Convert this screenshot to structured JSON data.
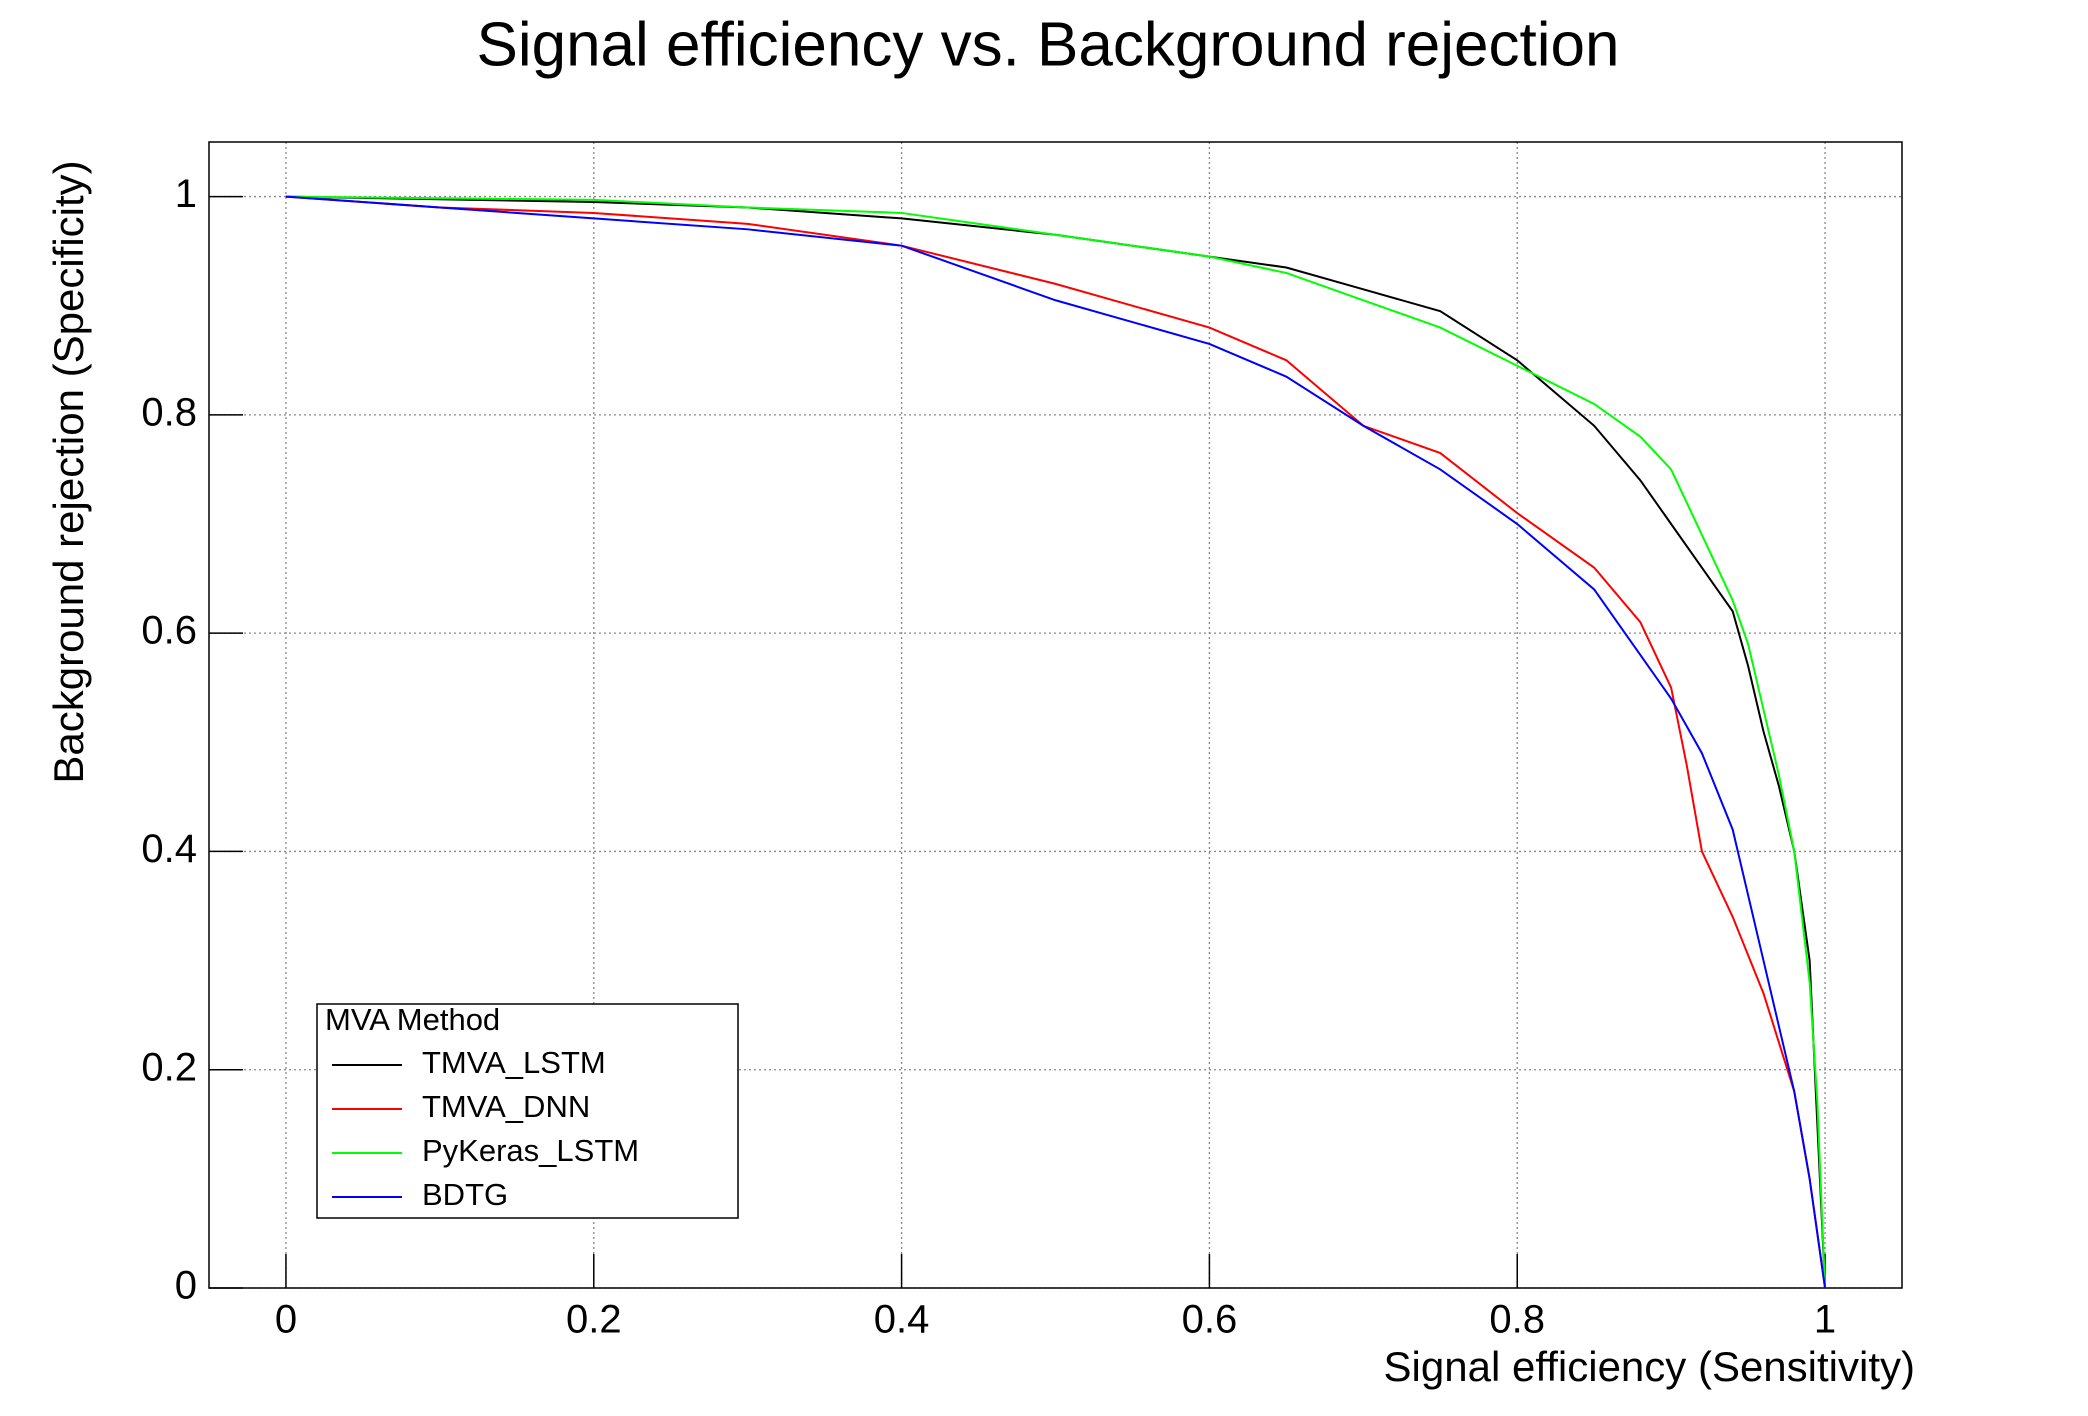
{
  "chart_data": {
    "type": "line",
    "title": "Signal efficiency vs. Background rejection",
    "x_label": "Signal efficiency (Sensitivity)",
    "y_label": "Background rejection (Specificity)",
    "xlim": [
      -0.05,
      1.05
    ],
    "ylim": [
      0,
      1.05
    ],
    "xticks": [
      0,
      0.2,
      0.4,
      0.6,
      0.8,
      1
    ],
    "yticks": [
      0,
      0.2,
      0.4,
      0.6,
      0.8,
      1
    ],
    "grid": true,
    "legend_title": "MVA Method",
    "legend_position": "bottom-left",
    "series": [
      {
        "name": "TMVA_LSTM",
        "color": "#000000",
        "x": [
          0,
          0.2,
          0.3,
          0.4,
          0.5,
          0.6,
          0.65,
          0.7,
          0.75,
          0.8,
          0.85,
          0.88,
          0.9,
          0.92,
          0.94,
          0.95,
          0.96,
          0.97,
          0.98,
          0.99,
          0.995,
          1
        ],
        "values": [
          1,
          0.995,
          0.99,
          0.98,
          0.965,
          0.945,
          0.935,
          0.915,
          0.895,
          0.85,
          0.79,
          0.74,
          0.7,
          0.66,
          0.62,
          0.57,
          0.51,
          0.46,
          0.4,
          0.3,
          0.15,
          0
        ]
      },
      {
        "name": "TMVA_DNN",
        "color": "#ff0000",
        "x": [
          0,
          0.1,
          0.2,
          0.3,
          0.4,
          0.5,
          0.6,
          0.65,
          0.7,
          0.75,
          0.8,
          0.85,
          0.88,
          0.9,
          0.91,
          0.92,
          0.94,
          0.96,
          0.98,
          0.99,
          1
        ],
        "values": [
          1,
          0.99,
          0.985,
          0.975,
          0.955,
          0.92,
          0.88,
          0.85,
          0.79,
          0.765,
          0.71,
          0.66,
          0.61,
          0.55,
          0.48,
          0.4,
          0.34,
          0.27,
          0.18,
          0.1,
          0
        ]
      },
      {
        "name": "PyKeras_LSTM",
        "color": "#00ff00",
        "x": [
          0,
          0.2,
          0.3,
          0.4,
          0.5,
          0.6,
          0.65,
          0.7,
          0.75,
          0.8,
          0.85,
          0.88,
          0.9,
          0.92,
          0.94,
          0.95,
          0.96,
          0.97,
          0.98,
          0.99,
          0.995,
          1
        ],
        "values": [
          1,
          0.997,
          0.99,
          0.985,
          0.965,
          0.945,
          0.93,
          0.905,
          0.88,
          0.845,
          0.81,
          0.78,
          0.75,
          0.69,
          0.63,
          0.59,
          0.53,
          0.47,
          0.4,
          0.28,
          0.17,
          0
        ]
      },
      {
        "name": "BDTG",
        "color": "#0000ff",
        "x": [
          0,
          0.1,
          0.2,
          0.3,
          0.4,
          0.5,
          0.6,
          0.65,
          0.7,
          0.75,
          0.8,
          0.85,
          0.88,
          0.9,
          0.92,
          0.94,
          0.96,
          0.98,
          0.99,
          1
        ],
        "values": [
          1,
          0.99,
          0.98,
          0.97,
          0.955,
          0.905,
          0.865,
          0.835,
          0.79,
          0.75,
          0.7,
          0.64,
          0.58,
          0.54,
          0.49,
          0.42,
          0.3,
          0.18,
          0.1,
          0
        ]
      }
    ]
  }
}
